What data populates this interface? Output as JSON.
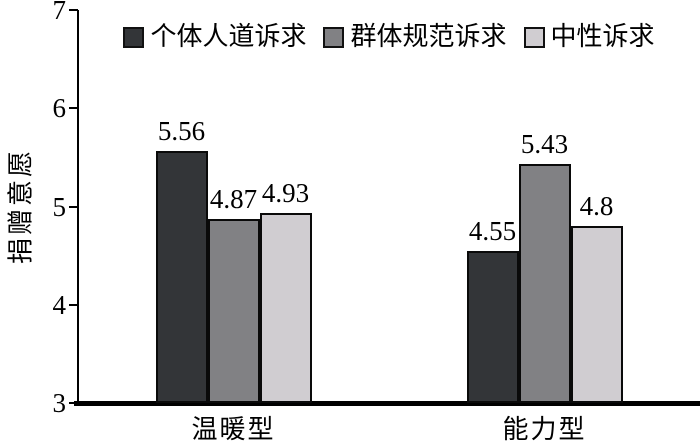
{
  "chart_data": {
    "type": "bar",
    "title": "",
    "ylabel": "捐赠意愿",
    "categories": [
      "温暖型",
      "能力型"
    ],
    "series": [
      {
        "name": "个体人道诉求",
        "color": "#333538",
        "values": [
          5.56,
          4.55
        ]
      },
      {
        "name": "群体规范诉求",
        "color": "#818184",
        "values": [
          4.87,
          5.43
        ]
      },
      {
        "name": "中性诉求",
        "color": "#d0cdd1",
        "values": [
          4.93,
          4.8
        ]
      }
    ],
    "bar_value_labels": [
      [
        "5.56",
        "4.87",
        "4.93"
      ],
      [
        "4.55",
        "5.43",
        "4.8"
      ]
    ],
    "ylim": [
      3,
      7
    ],
    "yticks": [
      3,
      4,
      5,
      6,
      7
    ],
    "legend_position": "top-center",
    "grid": false,
    "bar_border_color": "#000000",
    "axis_color": "#000000",
    "background_color": "#ffffff"
  }
}
